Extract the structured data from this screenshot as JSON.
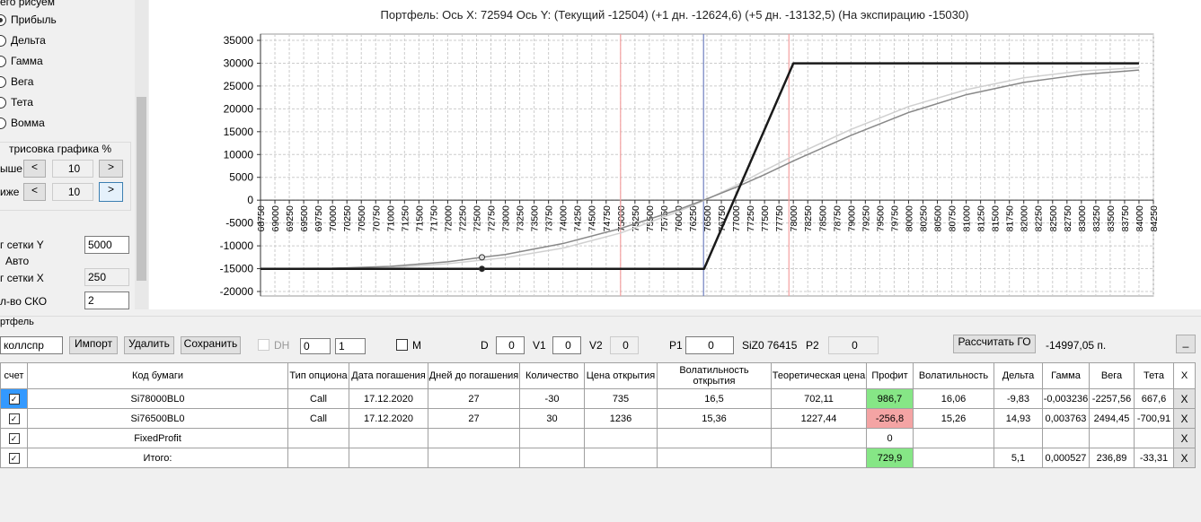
{
  "left_panel": {
    "group_title": "его рисуем",
    "options": [
      "Прибыль",
      "Дельта",
      "Гамма",
      "Вега",
      "Тета",
      "Вомма"
    ],
    "selected": 0,
    "shift_title": "трисовка графика %",
    "up_label": "ыше",
    "up_value": "10",
    "down_label": "иже",
    "down_value": "10",
    "dec": "<",
    "inc": ">",
    "grid_y_label": "г сетки Y",
    "grid_y_value": "5000",
    "auto_label": "Авто",
    "grid_x_label": "г сетки X",
    "grid_x_value": "250",
    "sko_label": "л-во СКО",
    "sko_value": "2"
  },
  "chart_data": {
    "type": "line",
    "title": "Портфель: Ось X: 72594 Ось Y:  (Текущий -12504)  (+1 дн. -12624,6)  (+5 дн. -13132,5)  (На экспирацию -15030)",
    "xlim": [
      68750,
      84250
    ],
    "ylim": [
      -20000,
      35000
    ],
    "xticks": [
      68750,
      69000,
      69250,
      69500,
      69750,
      70000,
      70250,
      70500,
      70750,
      71000,
      71250,
      71500,
      71750,
      72000,
      72250,
      72500,
      72750,
      73000,
      73250,
      73500,
      73750,
      74000,
      74250,
      74500,
      74750,
      75000,
      75250,
      75500,
      75750,
      76000,
      76250,
      76500,
      76750,
      77000,
      77250,
      77500,
      77750,
      78000,
      78250,
      78500,
      78750,
      79000,
      79250,
      79500,
      79750,
      80000,
      80250,
      80500,
      80750,
      81000,
      81250,
      81500,
      81750,
      82000,
      82250,
      82500,
      82750,
      83000,
      83250,
      83500,
      83750,
      84000,
      84250
    ],
    "yticks": [
      -20000,
      -15000,
      -10000,
      -5000,
      0,
      5000,
      10000,
      15000,
      20000,
      25000,
      30000,
      35000
    ],
    "grid": true,
    "series": [
      {
        "color": "#d0d0d0",
        "width": 1.5,
        "x": [
          68750,
          70000,
          71000,
          72000,
          72594,
          73000,
          74000,
          75000,
          76000,
          76500,
          77000,
          77500,
          78000,
          79000,
          80000,
          81000,
          82000,
          83000,
          84000
        ],
        "values": [
          -15030,
          -15000,
          -14800,
          -13900,
          -13132,
          -12600,
          -10500,
          -7200,
          -2500,
          200,
          3200,
          6500,
          9700,
          15500,
          20500,
          24200,
          26800,
          28300,
          29000
        ]
      },
      {
        "color": "#888888",
        "width": 1.5,
        "x": [
          68750,
          70000,
          71000,
          72000,
          72594,
          73000,
          74000,
          75000,
          76000,
          76500,
          77000,
          77500,
          78000,
          79000,
          80000,
          81000,
          82000,
          83000,
          84000
        ],
        "values": [
          -15000,
          -14900,
          -14500,
          -13500,
          -12504,
          -11900,
          -9500,
          -6200,
          -2100,
          300,
          2800,
          5600,
          8600,
          14200,
          19200,
          23100,
          25800,
          27500,
          28500
        ]
      },
      {
        "color": "#1a1a1a",
        "width": 2.5,
        "x": [
          68750,
          76450,
          78000,
          84000
        ],
        "values": [
          -15030,
          -15030,
          29970,
          29970
        ]
      }
    ],
    "vlines": [
      {
        "value": 75000,
        "color": "#f4a0a0"
      },
      {
        "value": 76441,
        "color": "#7080c0"
      },
      {
        "value": 77923,
        "color": "#f4a0a0"
      }
    ],
    "markers": {
      "x": 72594,
      "values": [
        -12504,
        -15030
      ]
    }
  },
  "toolbar": {
    "group_title": "ртфель",
    "portfolio": "коллспр",
    "import": "Импорт",
    "delete": "Удалить",
    "save": "Сохранить",
    "dh": "DH",
    "spin1": "0",
    "spin2": "1",
    "m": "M",
    "d_label": "D",
    "d_value": "0",
    "v1_label": "V1",
    "v1_value": "0",
    "v2_label": "V2",
    "v2_value": "0",
    "p1_label": "P1",
    "p1_value": "0",
    "quote": "SiZ0 76415",
    "p2_label": "P2",
    "p2_value": "0",
    "calc": "Рассчитать ГО",
    "go": "-14997,05 п.",
    "minimize": "_"
  },
  "table": {
    "columns": [
      "счет",
      "Код бумаги",
      "Тип опциона",
      "Дата погашения",
      "Дней до погашения",
      "Количество",
      "Цена открытия",
      "Волатильность открытия",
      "Теоретическая цена",
      "Профит",
      "Волатильность",
      "Дельта",
      "Гамма",
      "Вега",
      "Тета",
      "X"
    ],
    "rows": [
      {
        "checked": true,
        "profit_bg": "#86e686",
        "cells": [
          "Si78000BL0",
          "Call",
          "17.12.2020",
          "27",
          "-30",
          "735",
          "16,5",
          "702,11",
          "986,7",
          "16,06",
          "-9,83",
          "-0,003236",
          "-2257,56",
          "667,6",
          "X"
        ]
      },
      {
        "checked": true,
        "profit_bg": "#f4a4a4",
        "cells": [
          "Si76500BL0",
          "Call",
          "17.12.2020",
          "27",
          "30",
          "1236",
          "15,36",
          "1227,44",
          "-256,8",
          "15,26",
          "14,93",
          "0,003763",
          "2494,45",
          "-700,91",
          "X"
        ]
      },
      {
        "checked": true,
        "cells": [
          "FixedProfit",
          null,
          null,
          null,
          null,
          null,
          null,
          null,
          "0",
          null,
          null,
          null,
          null,
          null,
          "X"
        ]
      },
      {
        "checked": true,
        "profit_bg": "#86e686",
        "cells": [
          "Итого:",
          null,
          null,
          null,
          null,
          null,
          null,
          null,
          "729,9",
          null,
          "5,1",
          "0,000527",
          "236,89",
          "-33,31",
          "X"
        ]
      }
    ]
  }
}
